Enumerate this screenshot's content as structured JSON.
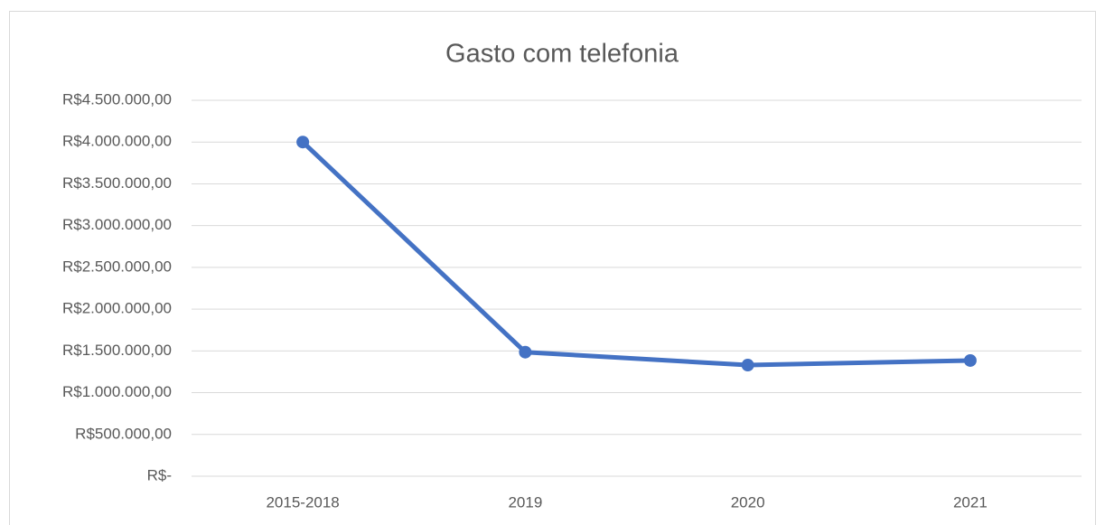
{
  "chart_data": {
    "type": "line",
    "title": "Gasto com telefonia",
    "categories": [
      "2015-2018",
      "2019",
      "2020",
      "2021"
    ],
    "series": [
      {
        "name": "Gasto",
        "color": "#4472c4",
        "values": [
          4000000,
          1485000,
          1330000,
          1385000
        ]
      }
    ],
    "ylim": [
      0,
      4500000
    ],
    "yticks": [
      {
        "value": 0,
        "label": "R$-"
      },
      {
        "value": 500000,
        "label": "R$500.000,00"
      },
      {
        "value": 1000000,
        "label": "R$1.000.000,00"
      },
      {
        "value": 1500000,
        "label": "R$1.500.000,00"
      },
      {
        "value": 2000000,
        "label": "R$2.000.000,00"
      },
      {
        "value": 2500000,
        "label": "R$2.500.000,00"
      },
      {
        "value": 3000000,
        "label": "R$3.000.000,00"
      },
      {
        "value": 3500000,
        "label": "R$3.500.000,00"
      },
      {
        "value": 4000000,
        "label": "R$4.000.000,00"
      },
      {
        "value": 4500000,
        "label": "R$4.500.000,00"
      }
    ],
    "grid": true
  }
}
